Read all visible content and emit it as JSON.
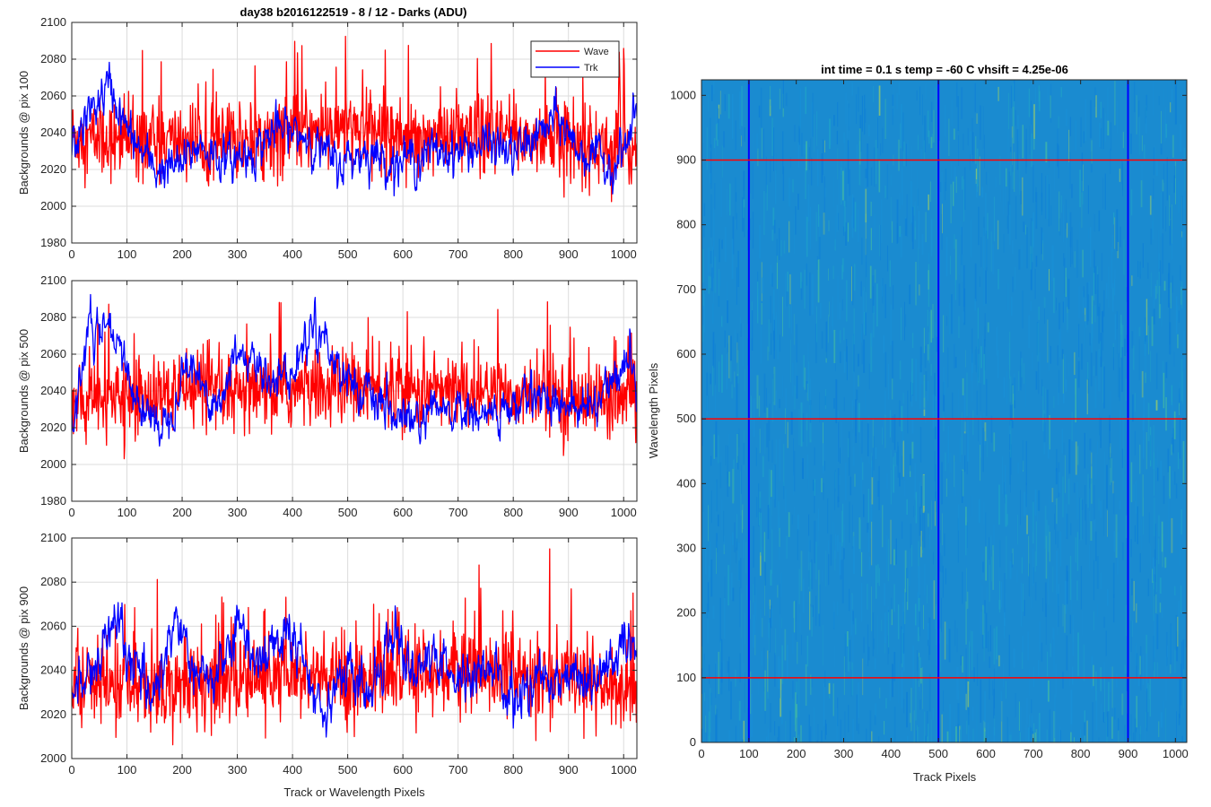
{
  "chart_data": [
    {
      "type": "line",
      "id": "pix100",
      "title": "day38 b2016122519 - 8 / 12 - Darks (ADU)",
      "xlabel": "",
      "ylabel": "Backgrounds @ pix 100",
      "xlim": [
        0,
        1024
      ],
      "ylim": [
        1980,
        2100
      ],
      "xticks": [
        0,
        100,
        200,
        300,
        400,
        500,
        600,
        700,
        800,
        900,
        1000
      ],
      "yticks": [
        1980,
        2000,
        2020,
        2040,
        2060,
        2080,
        2100
      ],
      "grid": true,
      "legend": {
        "position": "top-right",
        "entries": [
          "Wave",
          "Trk"
        ]
      },
      "series": [
        {
          "name": "Wave",
          "color": "#ff0000",
          "mean": 2037,
          "noise": 13,
          "knots": [
            [
              0,
              2038
            ],
            [
              100,
              2035
            ],
            [
              200,
              2036
            ],
            [
              300,
              2034
            ],
            [
              400,
              2040
            ],
            [
              500,
              2042
            ],
            [
              600,
              2040
            ],
            [
              700,
              2036
            ],
            [
              800,
              2038
            ],
            [
              900,
              2035
            ],
            [
              1000,
              2030
            ],
            [
              1024,
              2032
            ]
          ]
        },
        {
          "name": "Trk",
          "color": "#0000ff",
          "mean": 2032,
          "noise": 5,
          "knots": [
            [
              0,
              2030
            ],
            [
              30,
              2050
            ],
            [
              70,
              2066
            ],
            [
              90,
              2048
            ],
            [
              110,
              2036
            ],
            [
              150,
              2020
            ],
            [
              200,
              2022
            ],
            [
              230,
              2034
            ],
            [
              280,
              2024
            ],
            [
              330,
              2030
            ],
            [
              370,
              2042
            ],
            [
              430,
              2038
            ],
            [
              480,
              2022
            ],
            [
              530,
              2030
            ],
            [
              580,
              2024
            ],
            [
              620,
              2026
            ],
            [
              660,
              2030
            ],
            [
              700,
              2030
            ],
            [
              760,
              2034
            ],
            [
              800,
              2028
            ],
            [
              850,
              2040
            ],
            [
              880,
              2048
            ],
            [
              920,
              2030
            ],
            [
              980,
              2022
            ],
            [
              1010,
              2036
            ],
            [
              1024,
              2052
            ]
          ]
        }
      ]
    },
    {
      "type": "line",
      "id": "pix500",
      "title": "",
      "xlabel": "",
      "ylabel": "Backgrounds @ pix 500",
      "xlim": [
        0,
        1024
      ],
      "ylim": [
        1980,
        2100
      ],
      "xticks": [
        0,
        100,
        200,
        300,
        400,
        500,
        600,
        700,
        800,
        900,
        1000
      ],
      "yticks": [
        1980,
        2000,
        2020,
        2040,
        2060,
        2080,
        2100
      ],
      "grid": true,
      "series": [
        {
          "name": "Wave",
          "color": "#ff0000",
          "mean": 2038,
          "noise": 13,
          "knots": [
            [
              0,
              2032
            ],
            [
              100,
              2036
            ],
            [
              200,
              2038
            ],
            [
              300,
              2036
            ],
            [
              400,
              2040
            ],
            [
              500,
              2042
            ],
            [
              600,
              2040
            ],
            [
              700,
              2040
            ],
            [
              800,
              2038
            ],
            [
              900,
              2036
            ],
            [
              1000,
              2034
            ],
            [
              1024,
              2030
            ]
          ]
        },
        {
          "name": "Trk",
          "color": "#0000ff",
          "mean": 2034,
          "noise": 5,
          "knots": [
            [
              0,
              2025
            ],
            [
              30,
              2072
            ],
            [
              70,
              2072
            ],
            [
              100,
              2050
            ],
            [
              130,
              2028
            ],
            [
              170,
              2022
            ],
            [
              210,
              2058
            ],
            [
              240,
              2040
            ],
            [
              270,
              2032
            ],
            [
              300,
              2064
            ],
            [
              340,
              2050
            ],
            [
              400,
              2048
            ],
            [
              440,
              2080
            ],
            [
              470,
              2060
            ],
            [
              520,
              2040
            ],
            [
              570,
              2028
            ],
            [
              620,
              2022
            ],
            [
              680,
              2030
            ],
            [
              740,
              2026
            ],
            [
              800,
              2030
            ],
            [
              840,
              2040
            ],
            [
              880,
              2034
            ],
            [
              930,
              2028
            ],
            [
              990,
              2050
            ],
            [
              1010,
              2060
            ],
            [
              1024,
              2040
            ]
          ]
        }
      ]
    },
    {
      "type": "line",
      "id": "pix900",
      "title": "",
      "xlabel": "Track or Wavelength Pixels",
      "ylabel": "Backgrounds @ pix 900",
      "xlim": [
        0,
        1024
      ],
      "ylim": [
        2000,
        2100
      ],
      "xticks": [
        0,
        100,
        200,
        300,
        400,
        500,
        600,
        700,
        800,
        900,
        1000
      ],
      "yticks": [
        2000,
        2020,
        2040,
        2060,
        2080,
        2100
      ],
      "grid": true,
      "series": [
        {
          "name": "Wave",
          "color": "#ff0000",
          "mean": 2035,
          "noise": 12,
          "knots": [
            [
              0,
              2034
            ],
            [
              100,
              2032
            ],
            [
              200,
              2034
            ],
            [
              300,
              2036
            ],
            [
              400,
              2036
            ],
            [
              500,
              2036
            ],
            [
              600,
              2038
            ],
            [
              700,
              2040
            ],
            [
              800,
              2038
            ],
            [
              900,
              2036
            ],
            [
              1000,
              2032
            ],
            [
              1024,
              2028
            ]
          ]
        },
        {
          "name": "Trk",
          "color": "#0000ff",
          "mean": 2035,
          "noise": 5,
          "knots": [
            [
              0,
              2028
            ],
            [
              40,
              2040
            ],
            [
              80,
              2062
            ],
            [
              120,
              2036
            ],
            [
              150,
              2032
            ],
            [
              190,
              2064
            ],
            [
              230,
              2034
            ],
            [
              270,
              2040
            ],
            [
              300,
              2060
            ],
            [
              330,
              2046
            ],
            [
              400,
              2056
            ],
            [
              450,
              2024
            ],
            [
              500,
              2040
            ],
            [
              540,
              2028
            ],
            [
              580,
              2060
            ],
            [
              620,
              2040
            ],
            [
              660,
              2044
            ],
            [
              700,
              2036
            ],
            [
              760,
              2040
            ],
            [
              800,
              2026
            ],
            [
              850,
              2036
            ],
            [
              900,
              2040
            ],
            [
              950,
              2034
            ],
            [
              1000,
              2050
            ],
            [
              1024,
              2044
            ]
          ]
        }
      ]
    },
    {
      "type": "heatmap",
      "id": "image",
      "title": "int time = 0.1 s   temp = -60 C   vhsift = 4.25e-06",
      "xlabel": "Track Pixels",
      "ylabel": "Wavelength Pixels",
      "xlim": [
        0,
        1024
      ],
      "ylim": [
        0,
        1024
      ],
      "xticks": [
        0,
        100,
        200,
        300,
        400,
        500,
        600,
        700,
        800,
        900,
        1000
      ],
      "yticks": [
        0,
        100,
        200,
        300,
        400,
        500,
        600,
        700,
        800,
        900,
        1000
      ],
      "markers": {
        "vertical": {
          "values": [
            100,
            500,
            900
          ],
          "color": "#0000ff"
        },
        "horizontal": {
          "values": [
            100,
            500,
            900
          ],
          "color": "#ff0000"
        }
      },
      "colormap": [
        "#0e7fd6",
        "#1990d6",
        "#1fa0c8",
        "#3fb5a8",
        "#90c870"
      ]
    }
  ]
}
